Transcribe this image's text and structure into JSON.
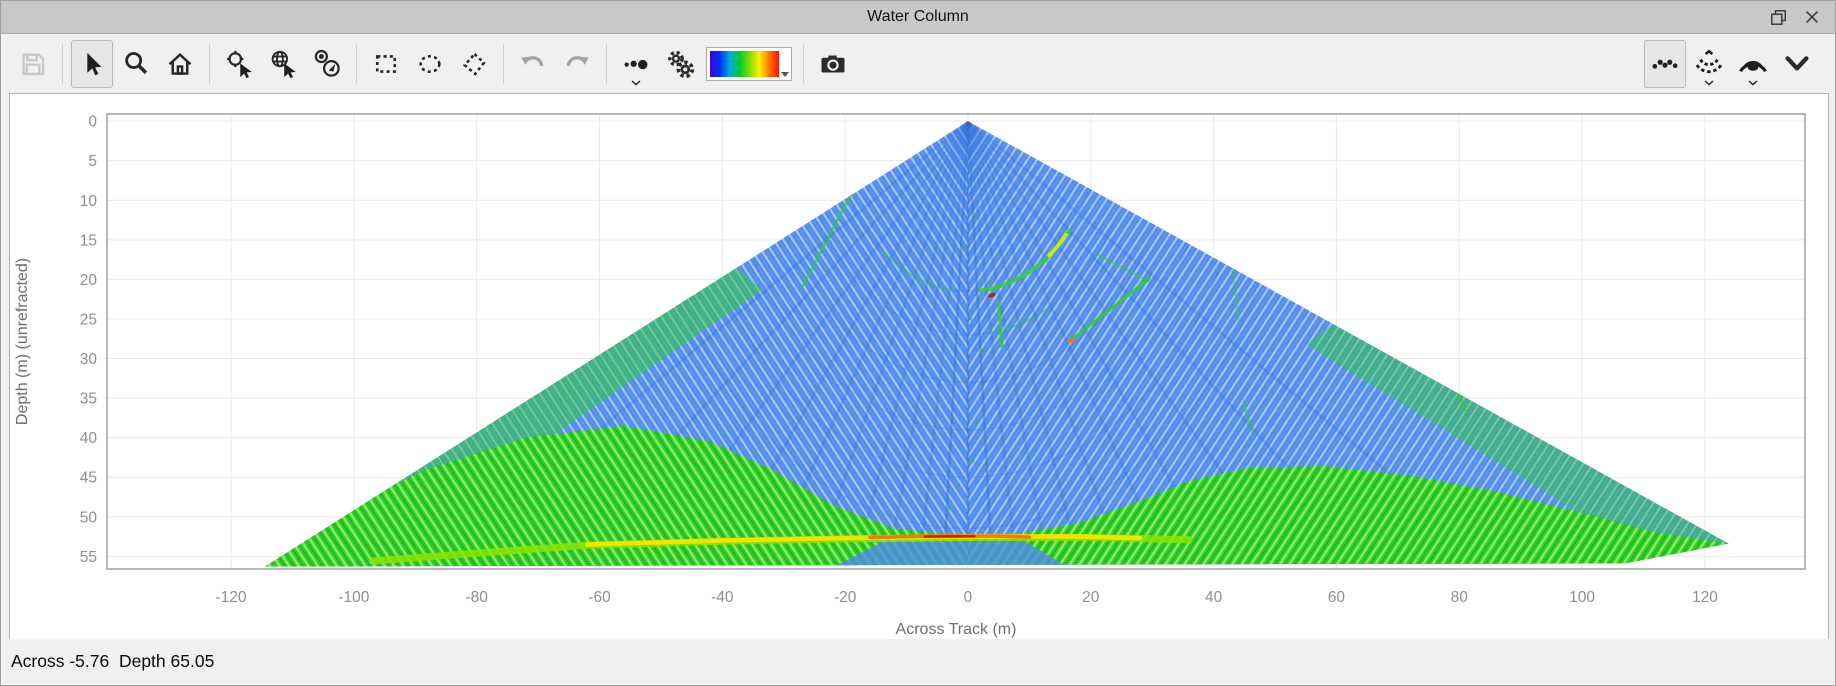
{
  "window": {
    "title": "Water Column"
  },
  "titlebar": {
    "icons": [
      {
        "name": "float-window"
      },
      {
        "name": "close-window"
      }
    ]
  },
  "toolbar": {
    "buttons": [
      {
        "name": "save",
        "disabled": true
      },
      {
        "name": "select-cursor",
        "active": true
      },
      {
        "name": "zoom"
      },
      {
        "name": "home"
      },
      {
        "name": "pick-point"
      },
      {
        "name": "pick-globe"
      },
      {
        "name": "pick-compass"
      },
      {
        "name": "select-rectangle"
      },
      {
        "name": "select-ellipse"
      },
      {
        "name": "select-polygon"
      },
      {
        "name": "undo",
        "disabled": true
      },
      {
        "name": "redo",
        "disabled": true
      },
      {
        "name": "point-display",
        "dropdown": true
      },
      {
        "name": "settings"
      },
      {
        "name": "colormap",
        "type": "gradient-select"
      },
      {
        "name": "snapshot"
      },
      {
        "name": "points-mode",
        "active": true,
        "align": "right"
      },
      {
        "name": "fan-mode",
        "dropdown": true,
        "align": "right"
      },
      {
        "name": "beam-mode",
        "dropdown": true,
        "align": "right"
      },
      {
        "name": "collapse",
        "align": "right"
      }
    ],
    "colormap_stops": [
      "#4400cc",
      "#0033ff",
      "#00aadd",
      "#00cc33",
      "#7fdd00",
      "#ffee00",
      "#ff7700",
      "#ff1100"
    ]
  },
  "statusbar": {
    "text": "Across -5.76  Depth 65.05"
  },
  "chart_data": {
    "type": "heatmap",
    "description": "Multibeam sonar water column fan: across-track distance vs depth, rainbow amplitude colormap (blue = low backscatter water, green/yellow/red = strong returns at seafloor ~53 m and midwater targets)",
    "xlabel": "Across Track (m)",
    "ylabel": "Depth (m) (unrefracted)",
    "xticks": [
      -120,
      -100,
      -80,
      -60,
      -40,
      -20,
      0,
      20,
      40,
      60,
      80,
      100,
      120
    ],
    "yticks": [
      0,
      5,
      10,
      15,
      20,
      25,
      30,
      35,
      40,
      45,
      50,
      55
    ],
    "xlim": [
      -140.2,
      136.3
    ],
    "ylim": [
      -0.9,
      56.6
    ],
    "grid": true,
    "legend": "none",
    "colors": {
      "grid": "#e9e9e9",
      "border": "#8a8a8a",
      "water_blue": "#4f8ceb",
      "ray_blue": "#2e6fd4",
      "ring_blue": "#3a77d0",
      "green": "#30cf2a"
    },
    "fan": {
      "apex": [
        0,
        0
      ],
      "outline": [
        [
          0,
          0
        ],
        [
          123.9,
          53.4
        ],
        [
          107,
          55.9
        ],
        [
          -114.5,
          56.3
        ]
      ],
      "ray_angles_deg": [
        -57,
        -50,
        -43,
        -36,
        -30,
        -24,
        -18,
        -13,
        -8,
        -4,
        0,
        4,
        8,
        13,
        18,
        24,
        30,
        36,
        43,
        50,
        57
      ],
      "range_ring_radii_m": [
        21.5,
        27,
        33,
        39,
        45,
        51.5
      ],
      "green_region": [
        [
          -114.5,
          56.3
        ],
        [
          -103,
          49.5
        ],
        [
          -88,
          44
        ],
        [
          -72,
          40
        ],
        [
          -56,
          38.5
        ],
        [
          -42,
          40.5
        ],
        [
          -32,
          44
        ],
        [
          -22,
          48.5
        ],
        [
          -12,
          51.5
        ],
        [
          -2,
          52.3
        ],
        [
          8,
          52.2
        ],
        [
          18,
          50.8
        ],
        [
          28,
          48
        ],
        [
          36,
          45.5
        ],
        [
          46,
          43.8
        ],
        [
          58,
          43.6
        ],
        [
          72,
          44.8
        ],
        [
          86,
          46.8
        ],
        [
          100,
          49.5
        ],
        [
          112,
          52
        ],
        [
          123.9,
          53.4
        ],
        [
          107,
          55.9
        ]
      ],
      "nadir_shadow": {
        "pts": [
          [
            -14,
            53.2
          ],
          [
            9,
            53.0
          ],
          [
            16,
            56.2
          ],
          [
            -22,
            56.4
          ]
        ],
        "opacity": 0.8
      },
      "edge_bands": [
        {
          "pts": [
            [
              -37.7,
              18.5
            ],
            [
              -114.5,
              56.3
            ],
            [
              -98,
              56.2
            ],
            [
              -33.5,
              21.3
            ]
          ],
          "opacity": 0.5
        },
        {
          "pts": [
            [
              59.6,
              25.6
            ],
            [
              123.9,
              53.4
            ],
            [
              108,
              53.6
            ],
            [
              55,
              28.2
            ]
          ],
          "opacity": 0.45
        }
      ],
      "seafloor_lines": [
        {
          "pts": [
            [
              -97,
              55.6
            ],
            [
              -80,
              54.6
            ],
            [
              -62,
              53.6
            ],
            [
              -40,
              53.1
            ],
            [
              -20,
              52.8
            ],
            [
              0,
              52.6
            ],
            [
              20,
              52.6
            ],
            [
              36,
              52.9
            ]
          ],
          "color": "#8ce400",
          "w": 7,
          "op": 0.85
        },
        {
          "pts": [
            [
              -62,
              53.5
            ],
            [
              -40,
              53.0
            ],
            [
              -20,
              52.7
            ],
            [
              0,
              52.5
            ],
            [
              18,
              52.5
            ],
            [
              28,
              52.7
            ]
          ],
          "color": "#ffe000",
          "w": 4.5,
          "op": 0.95
        },
        {
          "pts": [
            [
              -16,
              52.6
            ],
            [
              -6,
              52.45
            ],
            [
              4,
              52.45
            ],
            [
              10,
              52.55
            ]
          ],
          "color": "#ff7700",
          "w": 3.5,
          "op": 1
        },
        {
          "pts": [
            [
              -7,
              52.5
            ],
            [
              1,
              52.45
            ]
          ],
          "color": "#e81800",
          "w": 2.5,
          "op": 1
        }
      ],
      "ring_arcs": [
        {
          "r": 21.5,
          "a1": 5,
          "a2": 50,
          "color": "#35d528",
          "w": 4,
          "op": 0.8
        },
        {
          "r": 21.5,
          "a1": 38,
          "a2": 48,
          "color": "#d8f000",
          "w": 4,
          "op": 0.9
        },
        {
          "r": 21.5,
          "a1": -40,
          "a2": -5,
          "color": "#35d528",
          "w": 3,
          "op": 0.3
        },
        {
          "r": 27,
          "a1": 8,
          "a2": 30,
          "color": "#35d528",
          "w": 2.5,
          "op": 0.35
        }
      ],
      "streaks": [
        {
          "p": [
            29.5,
            19.9,
            16.4,
            27.9
          ],
          "color": "#2fd01f",
          "w": 3,
          "op": 0.9
        },
        {
          "p": [
            21.3,
            16.9,
            29.5,
            20.3
          ],
          "color": "#2fd01f",
          "w": 2,
          "op": 0.6
        },
        {
          "p": [
            5.0,
            22.9,
            5.5,
            28.5
          ],
          "color": "#2fd01f",
          "w": 3,
          "op": 0.8
        },
        {
          "p": [
            -18.9,
            9.0,
            -27.0,
            21.0
          ],
          "color": "#2fd01f",
          "w": 2.5,
          "op": 0.7
        },
        {
          "p": [
            -44.9,
            13.5,
            -46,
            15.5
          ],
          "color": "#2fd01f",
          "w": 2.5,
          "op": 0.6
        },
        {
          "p": [
            43.0,
            18.4,
            44.1,
            25.4
          ],
          "color": "#2fd01f",
          "w": 2,
          "op": 0.5
        },
        {
          "p": [
            44.9,
            35.5,
            46.3,
            39.3
          ],
          "color": "#2fd01f",
          "w": 2.5,
          "op": 0.55
        },
        {
          "p": [
            79,
            33,
            81,
            36.5
          ],
          "color": "#2fd01f",
          "w": 2.5,
          "op": 0.6
        }
      ],
      "blobs": [
        {
          "x": 3.9,
          "d": 22.0,
          "rx": 4,
          "ry": 2,
          "rot": -25,
          "color": "#b52000",
          "op": 0.95
        },
        {
          "x": 16.9,
          "d": 27.7,
          "rx": 4.5,
          "ry": 2,
          "rot": -40,
          "color": "#ff7700",
          "op": 0.9
        },
        {
          "x": 0,
          "d": 0.3,
          "rx": 1.2,
          "ry": 1.2,
          "rot": 0,
          "color": "#ee2200",
          "op": 0.9
        }
      ],
      "speckles": [
        [
          1.2,
          12
        ],
        [
          -0.8,
          16
        ],
        [
          2,
          20.5
        ],
        [
          0.5,
          25
        ],
        [
          2.5,
          29
        ],
        [
          -0.5,
          33
        ],
        [
          1.5,
          38
        ],
        [
          0.8,
          43
        ],
        [
          -1.5,
          46
        ],
        [
          -3,
          49
        ]
      ]
    }
  }
}
